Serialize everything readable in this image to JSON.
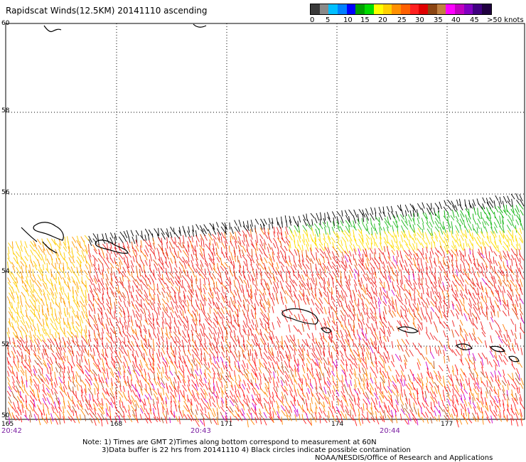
{
  "title": "Rapidscat Winds(12.5KM) 20141110 ascending",
  "scale": {
    "colors": [
      "#3a3a3a",
      "#8a8a8a",
      "#00bfff",
      "#0080ff",
      "#0000ff",
      "#00a000",
      "#00dd00",
      "#ffff00",
      "#ffd000",
      "#ff9000",
      "#ff6000",
      "#ff2020",
      "#e00000",
      "#8b4513",
      "#c08040",
      "#ff00ff",
      "#c000c0",
      "#8000c0",
      "#400080",
      "#200040"
    ],
    "labels": [
      "0",
      "5",
      "10",
      "15",
      "20",
      "25",
      "30",
      "35",
      "40",
      "45",
      ">50 knots"
    ]
  },
  "lat_labels": [
    "60",
    "58",
    "56",
    "54",
    "52",
    "50"
  ],
  "lon_labels": [
    "165",
    "168",
    "171",
    "174",
    "177"
  ],
  "time_labels": [
    "20:42",
    "20:43",
    "20:44"
  ],
  "notes": {
    "line1": "Note: 1) Times are GMT 2)Times along bottom correspond to measurement at 60N",
    "line2": "3)Data buffer is 22 hrs from 20141110 4) Black circles indicate possible contamination",
    "line3": "NOAA/NESDIS/Office of Research and Applications"
  }
}
